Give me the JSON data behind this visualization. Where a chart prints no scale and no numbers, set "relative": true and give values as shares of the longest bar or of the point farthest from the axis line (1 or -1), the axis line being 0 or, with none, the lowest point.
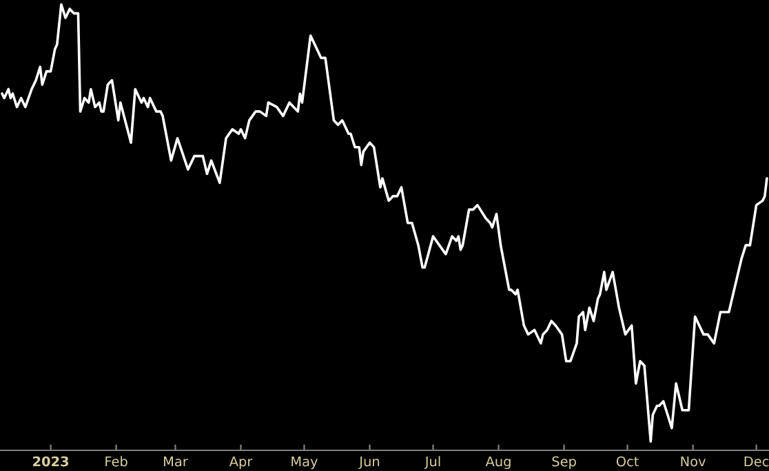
{
  "chart_data": {
    "type": "line",
    "relative": true,
    "grid": false,
    "marker": "none",
    "line_style": "solid",
    "xlim": [
      "2022-12-08",
      "2023-12-07"
    ],
    "xticks": [
      {
        "value": "2023-01-01",
        "label": "2023"
      },
      {
        "value": "2023-02-01",
        "label": "Feb"
      },
      {
        "value": "2023-03-01",
        "label": "Mar"
      },
      {
        "value": "2023-04-01",
        "label": "Apr"
      },
      {
        "value": "2023-05-01",
        "label": "May"
      },
      {
        "value": "2023-06-01",
        "label": "Jun"
      },
      {
        "value": "2023-07-01",
        "label": "Jul"
      },
      {
        "value": "2023-08-01",
        "label": "Aug"
      },
      {
        "value": "2023-09-01",
        "label": "Sep"
      },
      {
        "value": "2023-10-01",
        "label": "Oct"
      },
      {
        "value": "2023-11-01",
        "label": "Nov"
      },
      {
        "value": "2023-12-01",
        "label": "Dec"
      }
    ],
    "series": [
      {
        "color": "#ffffff",
        "x": [
          "2022-12-09",
          "2022-12-10",
          "2022-12-12",
          "2022-12-13",
          "2022-12-14",
          "2022-12-16",
          "2022-12-18",
          "2022-12-20",
          "2022-12-23",
          "2022-12-25",
          "2022-12-27",
          "2022-12-28",
          "2022-12-30",
          "2023-01-01",
          "2023-01-03",
          "2023-01-04",
          "2023-01-06",
          "2023-01-08",
          "2023-01-10",
          "2023-01-12",
          "2023-01-14",
          "2023-01-15",
          "2023-01-17",
          "2023-01-19",
          "2023-01-20",
          "2023-01-22",
          "2023-01-24",
          "2023-01-25",
          "2023-01-26",
          "2023-01-28",
          "2023-01-30",
          "2023-02-02",
          "2023-02-03",
          "2023-02-08",
          "2023-02-10",
          "2023-02-13",
          "2023-02-14",
          "2023-02-16",
          "2023-02-17",
          "2023-02-20",
          "2023-02-22",
          "2023-02-23",
          "2023-02-27",
          "2023-03-02",
          "2023-03-07",
          "2023-03-10",
          "2023-03-14",
          "2023-03-16",
          "2023-03-18",
          "2023-03-22",
          "2023-03-25",
          "2023-03-28",
          "2023-03-31",
          "2023-04-01",
          "2023-04-03",
          "2023-04-05",
          "2023-04-08",
          "2023-04-10",
          "2023-04-13",
          "2023-04-14",
          "2023-04-18",
          "2023-04-21",
          "2023-04-24",
          "2023-04-26",
          "2023-04-28",
          "2023-04-29",
          "2023-04-30",
          "2023-05-04",
          "2023-05-09",
          "2023-05-11",
          "2023-05-15",
          "2023-05-17",
          "2023-05-19",
          "2023-05-22",
          "2023-05-23",
          "2023-05-25",
          "2023-05-27",
          "2023-05-28",
          "2023-05-29",
          "2023-06-01",
          "2023-06-03",
          "2023-06-06",
          "2023-06-07",
          "2023-06-10",
          "2023-06-12",
          "2023-06-14",
          "2023-06-16",
          "2023-06-19",
          "2023-06-21",
          "2023-06-24",
          "2023-06-26",
          "2023-06-27",
          "2023-07-01",
          "2023-07-07",
          "2023-07-10",
          "2023-07-12",
          "2023-07-13",
          "2023-07-14",
          "2023-07-15",
          "2023-07-18",
          "2023-07-20",
          "2023-07-22",
          "2023-07-26",
          "2023-07-28",
          "2023-07-29",
          "2023-07-31",
          "2023-08-02",
          "2023-08-06",
          "2023-08-07",
          "2023-08-09",
          "2023-08-10",
          "2023-08-13",
          "2023-08-15",
          "2023-08-18",
          "2023-08-21",
          "2023-08-22",
          "2023-08-24",
          "2023-08-26",
          "2023-08-28",
          "2023-08-31",
          "2023-09-02",
          "2023-09-04",
          "2023-09-07",
          "2023-09-08",
          "2023-09-10",
          "2023-09-11",
          "2023-09-13",
          "2023-09-15",
          "2023-09-17",
          "2023-09-18",
          "2023-09-20",
          "2023-09-21",
          "2023-09-24",
          "2023-09-27",
          "2023-09-30",
          "2023-10-03",
          "2023-10-05",
          "2023-10-07",
          "2023-10-09",
          "2023-10-12",
          "2023-10-13",
          "2023-10-15",
          "2023-10-16",
          "2023-10-18",
          "2023-10-20",
          "2023-10-22",
          "2023-10-24",
          "2023-10-27",
          "2023-10-29",
          "2023-10-30",
          "2023-11-02",
          "2023-11-04",
          "2023-11-06",
          "2023-11-08",
          "2023-11-11",
          "2023-11-14",
          "2023-11-16",
          "2023-11-18",
          "2023-11-19",
          "2023-11-21",
          "2023-11-24",
          "2023-11-26",
          "2023-11-28",
          "2023-12-01",
          "2023-12-04",
          "2023-12-05",
          "2023-12-06"
        ],
        "values": [
          0.8,
          0.79,
          0.81,
          0.79,
          0.8,
          0.77,
          0.79,
          0.77,
          0.81,
          0.83,
          0.86,
          0.82,
          0.85,
          0.85,
          0.9,
          0.91,
          1.0,
          0.97,
          0.99,
          0.98,
          0.98,
          0.76,
          0.79,
          0.78,
          0.81,
          0.77,
          0.78,
          0.76,
          0.76,
          0.82,
          0.83,
          0.74,
          0.78,
          0.69,
          0.81,
          0.78,
          0.79,
          0.77,
          0.79,
          0.76,
          0.76,
          0.75,
          0.65,
          0.7,
          0.63,
          0.66,
          0.66,
          0.62,
          0.65,
          0.6,
          0.7,
          0.72,
          0.71,
          0.72,
          0.7,
          0.74,
          0.76,
          0.76,
          0.75,
          0.78,
          0.77,
          0.75,
          0.78,
          0.77,
          0.76,
          0.8,
          0.78,
          0.93,
          0.88,
          0.88,
          0.74,
          0.73,
          0.74,
          0.71,
          0.71,
          0.68,
          0.68,
          0.64,
          0.67,
          0.69,
          0.68,
          0.59,
          0.61,
          0.56,
          0.57,
          0.57,
          0.59,
          0.51,
          0.51,
          0.46,
          0.41,
          0.41,
          0.48,
          0.44,
          0.48,
          0.47,
          0.48,
          0.45,
          0.46,
          0.54,
          0.54,
          0.55,
          0.52,
          0.51,
          0.5,
          0.53,
          0.46,
          0.36,
          0.36,
          0.35,
          0.36,
          0.28,
          0.26,
          0.27,
          0.24,
          0.26,
          0.27,
          0.29,
          0.28,
          0.26,
          0.2,
          0.2,
          0.24,
          0.3,
          0.31,
          0.27,
          0.32,
          0.29,
          0.34,
          0.35,
          0.4,
          0.36,
          0.4,
          0.32,
          0.26,
          0.28,
          0.15,
          0.2,
          0.19,
          0.02,
          0.08,
          0.1,
          0.1,
          0.11,
          0.08,
          0.05,
          0.15,
          0.09,
          0.09,
          0.09,
          0.3,
          0.28,
          0.26,
          0.26,
          0.24,
          0.31,
          0.31,
          0.31,
          0.33,
          0.37,
          0.43,
          0.46,
          0.46,
          0.55,
          0.56,
          0.57,
          0.61
        ]
      }
    ]
  }
}
